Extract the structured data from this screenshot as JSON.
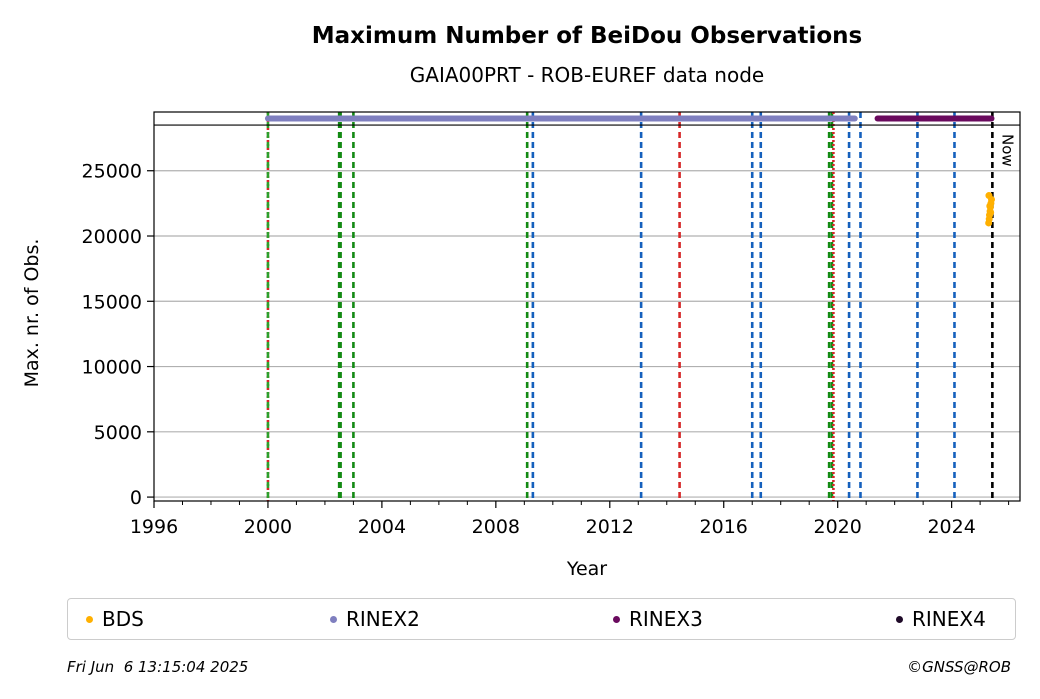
{
  "chart_data": {
    "type": "scatter",
    "title": "Maximum Number of BeiDou Observations",
    "subtitle": "GAIA00PRT - ROB-EUREF data node",
    "xlabel": "Year",
    "ylabel": "Max. nr. of Obs.",
    "xlim": [
      1996,
      2026.4
    ],
    "ylim": [
      -300,
      29500
    ],
    "x_ticks": [
      "1996",
      "2000",
      "2004",
      "2008",
      "2012",
      "2016",
      "2020",
      "2024"
    ],
    "y_ticks": [
      "0",
      "5000",
      "10000",
      "15000",
      "20000",
      "25000"
    ],
    "grid": "horizontal",
    "reference_line_y": 28500,
    "now_label": "Now",
    "now_x": 2025.43,
    "series": [
      {
        "name": "BDS",
        "color": "#ffb000",
        "points": [
          [
            2025.3,
            21000
          ],
          [
            2025.32,
            21300
          ],
          [
            2025.33,
            21600
          ],
          [
            2025.35,
            21900
          ],
          [
            2025.36,
            22200
          ],
          [
            2025.38,
            22500
          ],
          [
            2025.4,
            22800
          ],
          [
            2025.31,
            23100
          ],
          [
            2025.34,
            22300
          ],
          [
            2025.37,
            21800
          ]
        ]
      },
      {
        "name": "RINEX2",
        "color": "#7f7fbf",
        "ranges": [
          [
            2000.0,
            2020.6
          ]
        ],
        "y": 29000
      },
      {
        "name": "RINEX3",
        "color": "#6a0a5e",
        "ranges": [
          [
            2021.4,
            2025.4
          ]
        ],
        "y": 29000
      },
      {
        "name": "RINEX4",
        "color": "#1f0a28",
        "ranges": []
      }
    ],
    "event_lines": [
      {
        "x": 2000.0,
        "color": "#d62728",
        "style": "dotted"
      },
      {
        "x": 2000.0,
        "color": "#2ca02c",
        "style": "dashed"
      },
      {
        "x": 2002.5,
        "color": "#138a13",
        "style": "dashed"
      },
      {
        "x": 2002.55,
        "color": "#138a13",
        "style": "dashed"
      },
      {
        "x": 2003.0,
        "color": "#138a13",
        "style": "dashed"
      },
      {
        "x": 2009.1,
        "color": "#138a13",
        "style": "dashed"
      },
      {
        "x": 2009.3,
        "color": "#1560bd",
        "style": "dashed"
      },
      {
        "x": 2013.1,
        "color": "#1560bd",
        "style": "dashed"
      },
      {
        "x": 2014.45,
        "color": "#d62728",
        "style": "dashed"
      },
      {
        "x": 2017.0,
        "color": "#1560bd",
        "style": "dashed"
      },
      {
        "x": 2017.3,
        "color": "#1560bd",
        "style": "dashed"
      },
      {
        "x": 2019.7,
        "color": "#138a13",
        "style": "dashed"
      },
      {
        "x": 2019.8,
        "color": "#138a13",
        "style": "dashed"
      },
      {
        "x": 2019.85,
        "color": "#d62728",
        "style": "dotted"
      },
      {
        "x": 2020.4,
        "color": "#1560bd",
        "style": "dashed"
      },
      {
        "x": 2020.8,
        "color": "#1560bd",
        "style": "dashed"
      },
      {
        "x": 2022.8,
        "color": "#1560bd",
        "style": "dashed"
      },
      {
        "x": 2024.1,
        "color": "#1560bd",
        "style": "dashed"
      },
      {
        "x": 2025.43,
        "color": "#000000",
        "style": "dashed"
      }
    ],
    "legend_position": "bottom"
  },
  "legend": {
    "items": [
      {
        "label": "BDS",
        "color": "#ffb000"
      },
      {
        "label": "RINEX2",
        "color": "#7f7fbf"
      },
      {
        "label": "RINEX3",
        "color": "#6a0a5e"
      },
      {
        "label": "RINEX4",
        "color": "#1f0a28"
      }
    ]
  },
  "footer": {
    "date": "Fri Jun  6 13:15:04 2025",
    "credit": "©GNSS@ROB"
  }
}
